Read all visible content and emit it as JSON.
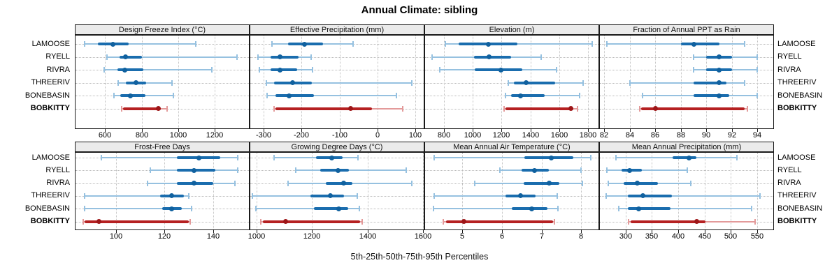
{
  "chart_data": {
    "type": "dot-interval",
    "title": "Annual Climate: sibling",
    "caption": "5th-25th-50th-75th-95th Percentiles",
    "legend_note": "values per site are [5th, 25th, 50th, 75th, 95th] percentiles",
    "sites": [
      "LAMOOSE",
      "RYELL",
      "RIVRA",
      "THREERIV",
      "BONEBASIN",
      "BOBKITTY"
    ],
    "highlight_site": "BOBKITTY",
    "colors": {
      "series_main": "#1a6dae",
      "series_light": "#96c1e0",
      "series_dot": "#10619f",
      "highlight_main": "#b52021",
      "highlight_light": "#e39a9a",
      "highlight_dot": "#9d1618",
      "header_bg": "#ebebeb",
      "border": "#1a1a1a",
      "grid": "#bfbfbf"
    },
    "panels": [
      {
        "title": "Design Freeze Index (°C)",
        "ticks": [
          600,
          800,
          1000,
          1200
        ],
        "domain": [
          435,
          1390
        ],
        "values": [
          [
            490,
            560,
            645,
            730,
            1095
          ],
          [
            610,
            680,
            712,
            800,
            1320
          ],
          [
            595,
            668,
            708,
            808,
            1185
          ],
          [
            672,
            712,
            768,
            825,
            965
          ],
          [
            650,
            682,
            738,
            820,
            975
          ],
          [
            690,
            698,
            893,
            903,
            938
          ]
        ]
      },
      {
        "title": "Effective Precipitation (mm)",
        "ticks": [
          -300,
          -200,
          -100,
          0,
          100
        ],
        "domain": [
          -337,
          124
        ],
        "values": [
          [
            -278,
            -236,
            -192,
            -143,
            -64
          ],
          [
            -314,
            -281,
            -256,
            -208,
            -175
          ],
          [
            -311,
            -281,
            -257,
            -212,
            -171
          ],
          [
            -292,
            -272,
            -223,
            -172,
            90
          ],
          [
            -290,
            -268,
            -232,
            -168,
            50
          ],
          [
            -272,
            -269,
            -71,
            -14,
            67
          ]
        ]
      },
      {
        "title": "Elevation (m)",
        "ticks": [
          800,
          1000,
          1200,
          1400,
          1600,
          1800
        ],
        "domain": [
          664,
          1878
        ],
        "values": [
          [
            810,
            900,
            1108,
            1308,
            1828
          ],
          [
            718,
            1010,
            1113,
            1265,
            1473
          ],
          [
            769,
            1012,
            1198,
            1342,
            1582
          ],
          [
            1246,
            1284,
            1371,
            1570,
            1768
          ],
          [
            1227,
            1266,
            1330,
            1498,
            1740
          ],
          [
            1218,
            1225,
            1680,
            1700,
            1728
          ]
        ]
      },
      {
        "title": "Fraction of Annual PPT as Rain",
        "ticks": [
          82,
          84,
          86,
          88,
          90,
          92,
          94
        ],
        "domain": [
          81.6,
          95.3
        ],
        "values": [
          [
            82.2,
            88.0,
            89.0,
            91.0,
            93.0
          ],
          [
            89.0,
            90.0,
            91.0,
            92.0,
            94.0
          ],
          [
            89.0,
            90.0,
            91.0,
            92.0,
            94.0
          ],
          [
            84.0,
            89.0,
            91.0,
            91.6,
            93.0
          ],
          [
            85.0,
            89.0,
            91.0,
            91.8,
            94.0
          ],
          [
            84.8,
            84.9,
            86.0,
            93.0,
            93.2
          ]
        ]
      },
      {
        "title": "Frost-Free Days",
        "ticks": [
          100,
          120,
          140
        ],
        "domain": [
          83,
          155
        ],
        "values": [
          [
            94,
            125,
            134,
            143,
            150
          ],
          [
            114,
            125,
            132,
            141,
            150
          ],
          [
            113,
            125,
            132,
            140,
            149
          ],
          [
            87,
            118,
            123,
            128,
            130
          ],
          [
            87,
            119,
            123,
            127,
            131
          ],
          [
            86.5,
            87,
            93,
            130,
            130.5
          ]
        ]
      },
      {
        "title": "Growing Degree Days (°C)",
        "ticks": [
          1000,
          1200,
          1400,
          1600
        ],
        "domain": [
          975,
          1605
        ],
        "values": [
          [
            1063,
            1215,
            1272,
            1310,
            1365
          ],
          [
            1142,
            1230,
            1294,
            1332,
            1540
          ],
          [
            1113,
            1250,
            1315,
            1345,
            1560
          ],
          [
            985,
            1195,
            1266,
            1315,
            1363
          ],
          [
            997,
            1206,
            1296,
            1330,
            1370
          ],
          [
            1015,
            1022,
            1105,
            1372,
            1380
          ]
        ]
      },
      {
        "title": "Mean Annual Air Temperature (°C)",
        "ticks": [
          5,
          6,
          7,
          8
        ],
        "domain": [
          4.05,
          8.45
        ],
        "values": [
          [
            4.3,
            6.57,
            7.25,
            7.8,
            8.24
          ],
          [
            5.95,
            6.5,
            6.82,
            7.18,
            8.0
          ],
          [
            5.32,
            6.55,
            7.2,
            7.45,
            8.02
          ],
          [
            4.3,
            6.1,
            6.47,
            6.85,
            7.4
          ],
          [
            4.28,
            6.25,
            6.76,
            7.15,
            7.41
          ],
          [
            4.52,
            4.6,
            5.05,
            7.28,
            7.33
          ]
        ]
      },
      {
        "title": "Mean Annual Precipitation (mm)",
        "ticks": [
          300,
          350,
          400,
          450,
          500,
          550
        ],
        "domain": [
          250,
          582
        ],
        "values": [
          [
            282,
            389,
            420,
            435,
            511
          ],
          [
            265,
            293,
            308,
            331,
            417
          ],
          [
            267,
            297,
            322,
            362,
            424
          ],
          [
            263,
            305,
            333,
            388,
            556
          ],
          [
            287,
            305,
            325,
            385,
            540
          ],
          [
            306,
            310,
            435,
            452,
            546
          ]
        ]
      }
    ]
  }
}
